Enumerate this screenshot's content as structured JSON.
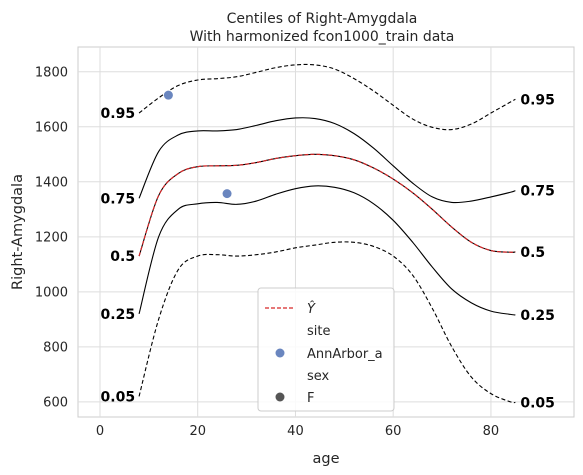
{
  "chart_data": {
    "type": "line",
    "title": "Centiles of Right-Amygdala",
    "subtitle": "With harmonized fcon1000_train data",
    "xlabel": "age",
    "ylabel": "Right-Amygdala",
    "xlim": [
      -4.5,
      97
    ],
    "ylim": [
      545,
      1890
    ],
    "xticks": [
      0,
      20,
      40,
      60,
      80
    ],
    "yticks": [
      600,
      800,
      1000,
      1200,
      1400,
      1600,
      1800
    ],
    "grid": true,
    "centiles": [
      {
        "name": "0.05",
        "label": "0.05",
        "dashed": true,
        "x": [
          8,
          12,
          16,
          20,
          24,
          28,
          32,
          36,
          40,
          44,
          48,
          52,
          56,
          60,
          64,
          68,
          72,
          76,
          80,
          84,
          85
        ],
        "y": [
          620,
          900,
          1080,
          1130,
          1135,
          1130,
          1135,
          1145,
          1160,
          1170,
          1180,
          1180,
          1165,
          1130,
          1060,
          940,
          800,
          690,
          630,
          600,
          598
        ]
      },
      {
        "name": "0.25",
        "label": "0.25",
        "dashed": false,
        "x": [
          8,
          12,
          16,
          20,
          24,
          28,
          32,
          36,
          40,
          44,
          48,
          52,
          56,
          60,
          64,
          68,
          72,
          76,
          80,
          84,
          85
        ],
        "y": [
          920,
          1200,
          1300,
          1320,
          1325,
          1318,
          1330,
          1355,
          1375,
          1385,
          1380,
          1360,
          1320,
          1260,
          1180,
          1090,
          1010,
          960,
          930,
          918,
          916
        ]
      },
      {
        "name": "0.5",
        "label": "0.5",
        "dashed": false,
        "x": [
          8,
          12,
          16,
          20,
          24,
          28,
          32,
          36,
          40,
          44,
          48,
          52,
          56,
          60,
          64,
          68,
          72,
          76,
          80,
          84,
          85
        ],
        "y": [
          1130,
          1350,
          1430,
          1455,
          1458,
          1460,
          1470,
          1485,
          1495,
          1500,
          1495,
          1480,
          1450,
          1410,
          1360,
          1300,
          1235,
          1180,
          1150,
          1144,
          1145
        ]
      },
      {
        "name": "0.75",
        "label": "0.75",
        "dashed": false,
        "x": [
          8,
          12,
          16,
          20,
          24,
          28,
          32,
          36,
          40,
          44,
          48,
          52,
          56,
          60,
          64,
          68,
          72,
          76,
          80,
          84,
          85
        ],
        "y": [
          1340,
          1510,
          1570,
          1585,
          1585,
          1590,
          1605,
          1622,
          1632,
          1630,
          1612,
          1575,
          1522,
          1458,
          1395,
          1345,
          1325,
          1330,
          1345,
          1362,
          1368
        ]
      },
      {
        "name": "0.95",
        "label": "0.95",
        "dashed": true,
        "x": [
          8,
          12,
          16,
          20,
          24,
          28,
          32,
          36,
          40,
          44,
          48,
          52,
          56,
          60,
          64,
          68,
          72,
          76,
          80,
          84,
          85
        ],
        "y": [
          1650,
          1705,
          1750,
          1770,
          1775,
          1782,
          1798,
          1815,
          1825,
          1825,
          1810,
          1775,
          1730,
          1678,
          1628,
          1598,
          1590,
          1610,
          1650,
          1690,
          1700
        ]
      }
    ],
    "median_line": {
      "name": "Ŷ",
      "color": "#d62728",
      "x": [
        8,
        12,
        16,
        20,
        24,
        28,
        32,
        36,
        40,
        44,
        48,
        52,
        56,
        60,
        64,
        68,
        72,
        76,
        80,
        84,
        85
      ],
      "y": [
        1130,
        1350,
        1430,
        1455,
        1458,
        1460,
        1470,
        1485,
        1495,
        1500,
        1495,
        1480,
        1450,
        1410,
        1360,
        1300,
        1235,
        1180,
        1150,
        1144,
        1145
      ]
    },
    "points": [
      {
        "x": 14,
        "y": 1715,
        "color": "#6a86bf"
      },
      {
        "x": 26,
        "y": 1357,
        "color": "#6a86bf"
      }
    ],
    "legend": {
      "placement": "lower-center",
      "yhat_label": "Ŷ",
      "site_title": "site",
      "site_entry": "AnnArbor_a",
      "sex_title": "sex",
      "sex_entry": "F",
      "site_color": "#6a86bf",
      "sex_color": "#555555"
    }
  }
}
